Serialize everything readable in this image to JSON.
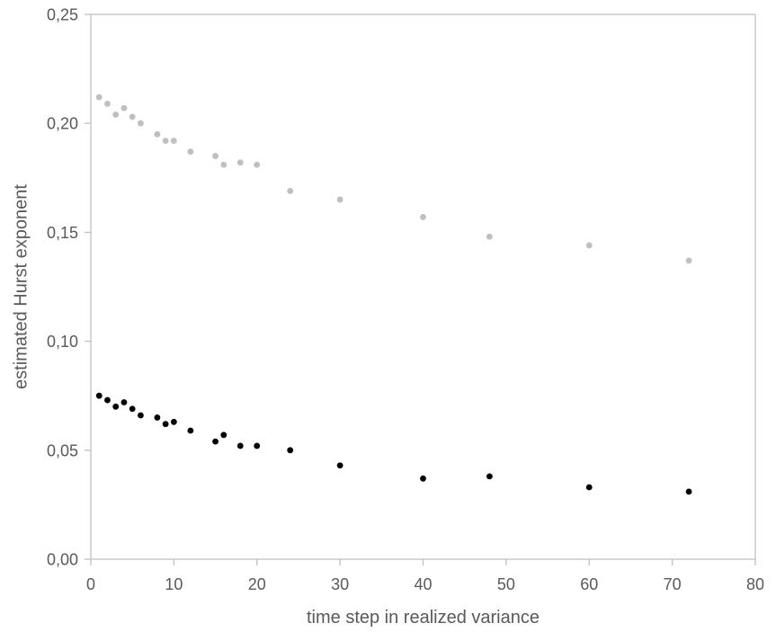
{
  "chart_data": {
    "type": "scatter",
    "xlabel": "time step in realized variance",
    "ylabel": "estimated Hurst exponent",
    "xlim": [
      0,
      80
    ],
    "ylim": [
      0,
      0.25
    ],
    "x_ticks": [
      0,
      10,
      20,
      30,
      40,
      50,
      60,
      70,
      80
    ],
    "x_tick_labels": [
      "0",
      "10",
      "20",
      "30",
      "40",
      "50",
      "60",
      "70",
      "80"
    ],
    "y_ticks": [
      0,
      0.05,
      0.1,
      0.15,
      0.2,
      0.25
    ],
    "y_tick_labels": [
      "0,00",
      "0,05",
      "0,10",
      "0,15",
      "0,20",
      "0,25"
    ],
    "grid": false,
    "legend": false,
    "marker_diameter_px": 6.8,
    "x": [
      1,
      2,
      3,
      4,
      5,
      6,
      8,
      9,
      10,
      12,
      15,
      16,
      18,
      20,
      24,
      30,
      40,
      48,
      60,
      72
    ],
    "series": [
      {
        "name": "gray",
        "color": "#bfbfbf",
        "values": [
          0.212,
          0.209,
          0.204,
          0.207,
          0.203,
          0.2,
          0.195,
          0.192,
          0.192,
          0.187,
          0.185,
          0.181,
          0.182,
          0.181,
          0.169,
          0.165,
          0.157,
          0.148,
          0.144,
          0.137
        ]
      },
      {
        "name": "black",
        "color": "#000000",
        "values": [
          0.075,
          0.073,
          0.07,
          0.072,
          0.069,
          0.066,
          0.065,
          0.062,
          0.063,
          0.059,
          0.054,
          0.057,
          0.052,
          0.052,
          0.05,
          0.043,
          0.037,
          0.038,
          0.033,
          0.031
        ]
      }
    ]
  },
  "colors": {
    "background": "#ffffff",
    "axis_line": "#bfbfbf",
    "tick_text": "#595959",
    "axis_title_text": "#595959"
  }
}
